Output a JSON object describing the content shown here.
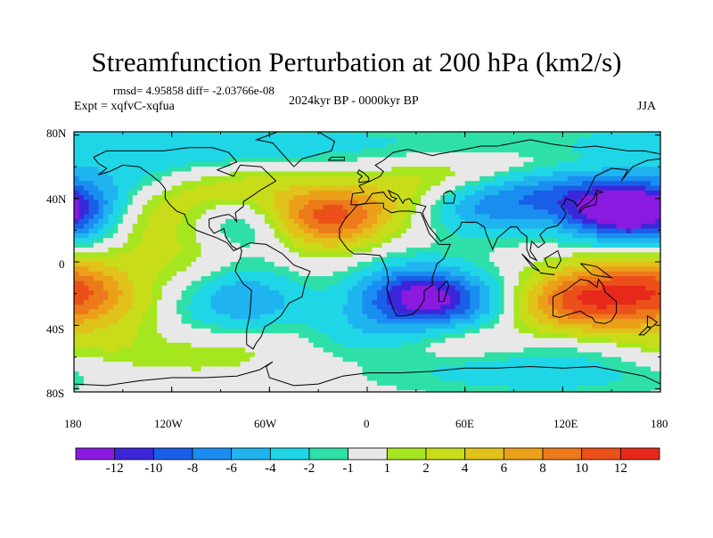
{
  "title": "Streamfunction Perturbation at 200 hPa (km2/s)",
  "stats": "rmsd= 4.95858 diff= -2.03766e-08",
  "experiment": "Expt = xqfvC-xqfua",
  "period": "2024kyr BP - 0000kyr BP",
  "season": "JJA",
  "lat_ticks": [
    "80N",
    "40N",
    "0",
    "40S",
    "80S"
  ],
  "lon_ticks": [
    "180",
    "120W",
    "60W",
    "0",
    "60E",
    "120E",
    "180"
  ],
  "colorbar": {
    "labels": [
      "-12",
      "-10",
      "-8",
      "-6",
      "-4",
      "-2",
      "-1",
      "1",
      "2",
      "4",
      "6",
      "8",
      "10",
      "12"
    ],
    "colors": [
      "#8a1ae0",
      "#3b27d9",
      "#1a5fe8",
      "#1a8ef0",
      "#1fb4f0",
      "#1fd6e6",
      "#2ee0a8",
      "#e8e8e8",
      "#a6e61e",
      "#c8dc1a",
      "#e0c21a",
      "#eca01a",
      "#ec7a1a",
      "#ec501a",
      "#e8281a"
    ]
  },
  "chart_data": {
    "type": "heatmap",
    "variable": "Streamfunction Perturbation at 200 hPa",
    "units": "km2/s",
    "lon_range": [
      -180,
      180
    ],
    "lat_range": [
      -90,
      90
    ],
    "projection": "cylindrical-equidistant",
    "levels": [
      -12,
      -10,
      -8,
      -6,
      -4,
      -2,
      -1,
      1,
      2,
      4,
      6,
      8,
      10,
      12
    ],
    "anomaly_centers": [
      {
        "lon": -25,
        "lat": 30,
        "value": 12
      },
      {
        "lon": 150,
        "lat": 33,
        "value": -12
      },
      {
        "lon": 130,
        "lat": -25,
        "value": 10
      },
      {
        "lon": 45,
        "lat": -25,
        "value": -10
      },
      {
        "lon": -175,
        "lat": 32,
        "value": -10
      },
      {
        "lon": -175,
        "lat": -20,
        "value": 8
      },
      {
        "lon": -150,
        "lat": 33,
        "value": 6
      },
      {
        "lon": 75,
        "lat": 38,
        "value": -8
      },
      {
        "lon": -70,
        "lat": 28,
        "value": -4
      },
      {
        "lon": -75,
        "lat": -25,
        "value": -6
      },
      {
        "lon": 20,
        "lat": -20,
        "value": -6
      },
      {
        "lon": -60,
        "lat": -55,
        "value": 2
      },
      {
        "lon": 10,
        "lat": -55,
        "value": -4
      },
      {
        "lon": 120,
        "lat": -65,
        "value": -4
      },
      {
        "lon": 45,
        "lat": -50,
        "value": 4
      },
      {
        "lon": 45,
        "lat": 55,
        "value": 6
      },
      {
        "lon": -125,
        "lat": 60,
        "value": -4
      },
      {
        "lon": -100,
        "lat": 48,
        "value": 4
      },
      {
        "lon": 0,
        "lat": 65,
        "value": -4
      },
      {
        "lon": 100,
        "lat": 72,
        "value": -2
      },
      {
        "lon": 140,
        "lat": 70,
        "value": 2
      },
      {
        "lon": 170,
        "lat": 75,
        "value": -2
      },
      {
        "lon": -120,
        "lat": 5,
        "value": 2
      },
      {
        "lon": 160,
        "lat": -10,
        "value": 4
      },
      {
        "lon": -170,
        "lat": -55,
        "value": 2
      }
    ]
  }
}
